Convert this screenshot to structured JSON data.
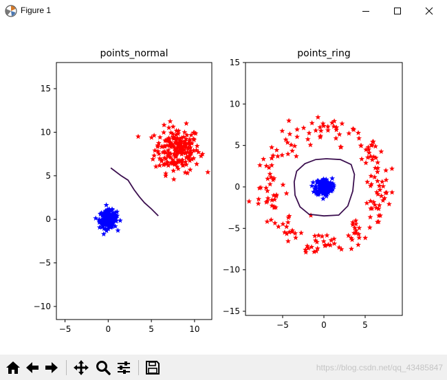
{
  "window": {
    "title": "Figure 1",
    "icon": "matplotlib-icon",
    "controls": [
      "minimize-icon",
      "maximize-icon",
      "close-icon"
    ]
  },
  "toolbar": {
    "buttons": [
      "home-icon",
      "back-arrow-icon",
      "forward-arrow-icon",
      "pan-icon",
      "zoom-icon",
      "configure-subplots-icon",
      "save-icon"
    ],
    "watermark": "https://blog.csdn.net/qq_43485847"
  },
  "colors": {
    "class_a": "#ff0000",
    "class_b": "#0000ff",
    "boundary": "#3b0f4f"
  },
  "chart_data": [
    {
      "type": "scatter",
      "title": "points_normal",
      "xlim": [
        -6,
        12
      ],
      "ylim": [
        -11.5,
        18
      ],
      "xticks": [
        -5,
        0,
        5,
        10
      ],
      "yticks": [
        -10,
        -5,
        0,
        5,
        10,
        15
      ],
      "xtick_labels": [
        "−5",
        "0",
        "5",
        "10"
      ],
      "ytick_labels": [
        "−10",
        "−5",
        "0",
        "5",
        "10",
        "15"
      ],
      "series": [
        {
          "color": "#ff0000",
          "marker": "star",
          "center": [
            8,
            8
          ],
          "spread": 1.3,
          "n": 200
        },
        {
          "color": "#0000ff",
          "marker": "star",
          "center": [
            0,
            0
          ],
          "spread": 0.5,
          "n": 200
        }
      ],
      "boundary": [
        [
          0.3,
          5.9
        ],
        [
          1.5,
          5
        ],
        [
          2.3,
          4.5
        ],
        [
          3,
          3.4
        ],
        [
          3.6,
          2.6
        ],
        [
          4.2,
          1.9
        ],
        [
          5,
          1.2
        ],
        [
          5.8,
          0.4
        ]
      ]
    },
    {
      "type": "scatter",
      "title": "points_ring",
      "xlim": [
        -9.5,
        9.5
      ],
      "ylim": [
        -15.5,
        15
      ],
      "xticks": [
        -5,
        0,
        5
      ],
      "yticks": [
        -15,
        -10,
        -5,
        0,
        5,
        10,
        15
      ],
      "xtick_labels": [
        "−5",
        "0",
        "5"
      ],
      "ytick_labels": [
        "−15",
        "−10",
        "−5",
        "0",
        "5",
        "10",
        "15"
      ],
      "series": [
        {
          "color": "#ff0000",
          "marker": "star",
          "ring_radius": 7,
          "ring_spread": 0.8,
          "n": 200
        },
        {
          "color": "#0000ff",
          "marker": "star",
          "center": [
            0,
            0
          ],
          "spread": 0.5,
          "n": 200
        }
      ],
      "boundary": [
        [
          0.3,
          3.4
        ],
        [
          2,
          3.3
        ],
        [
          3.3,
          2.7
        ],
        [
          3.7,
          1.5
        ],
        [
          3.5,
          -0.5
        ],
        [
          2.9,
          -2.3
        ],
        [
          1.8,
          -3.4
        ],
        [
          0,
          -3.5
        ],
        [
          -1.8,
          -3.3
        ],
        [
          -2.9,
          -2.4
        ],
        [
          -3.5,
          -1
        ],
        [
          -3.6,
          0.6
        ],
        [
          -3.3,
          1.9
        ],
        [
          -2.3,
          2.8
        ],
        [
          -1,
          3.3
        ],
        [
          0.3,
          3.4
        ]
      ]
    }
  ]
}
